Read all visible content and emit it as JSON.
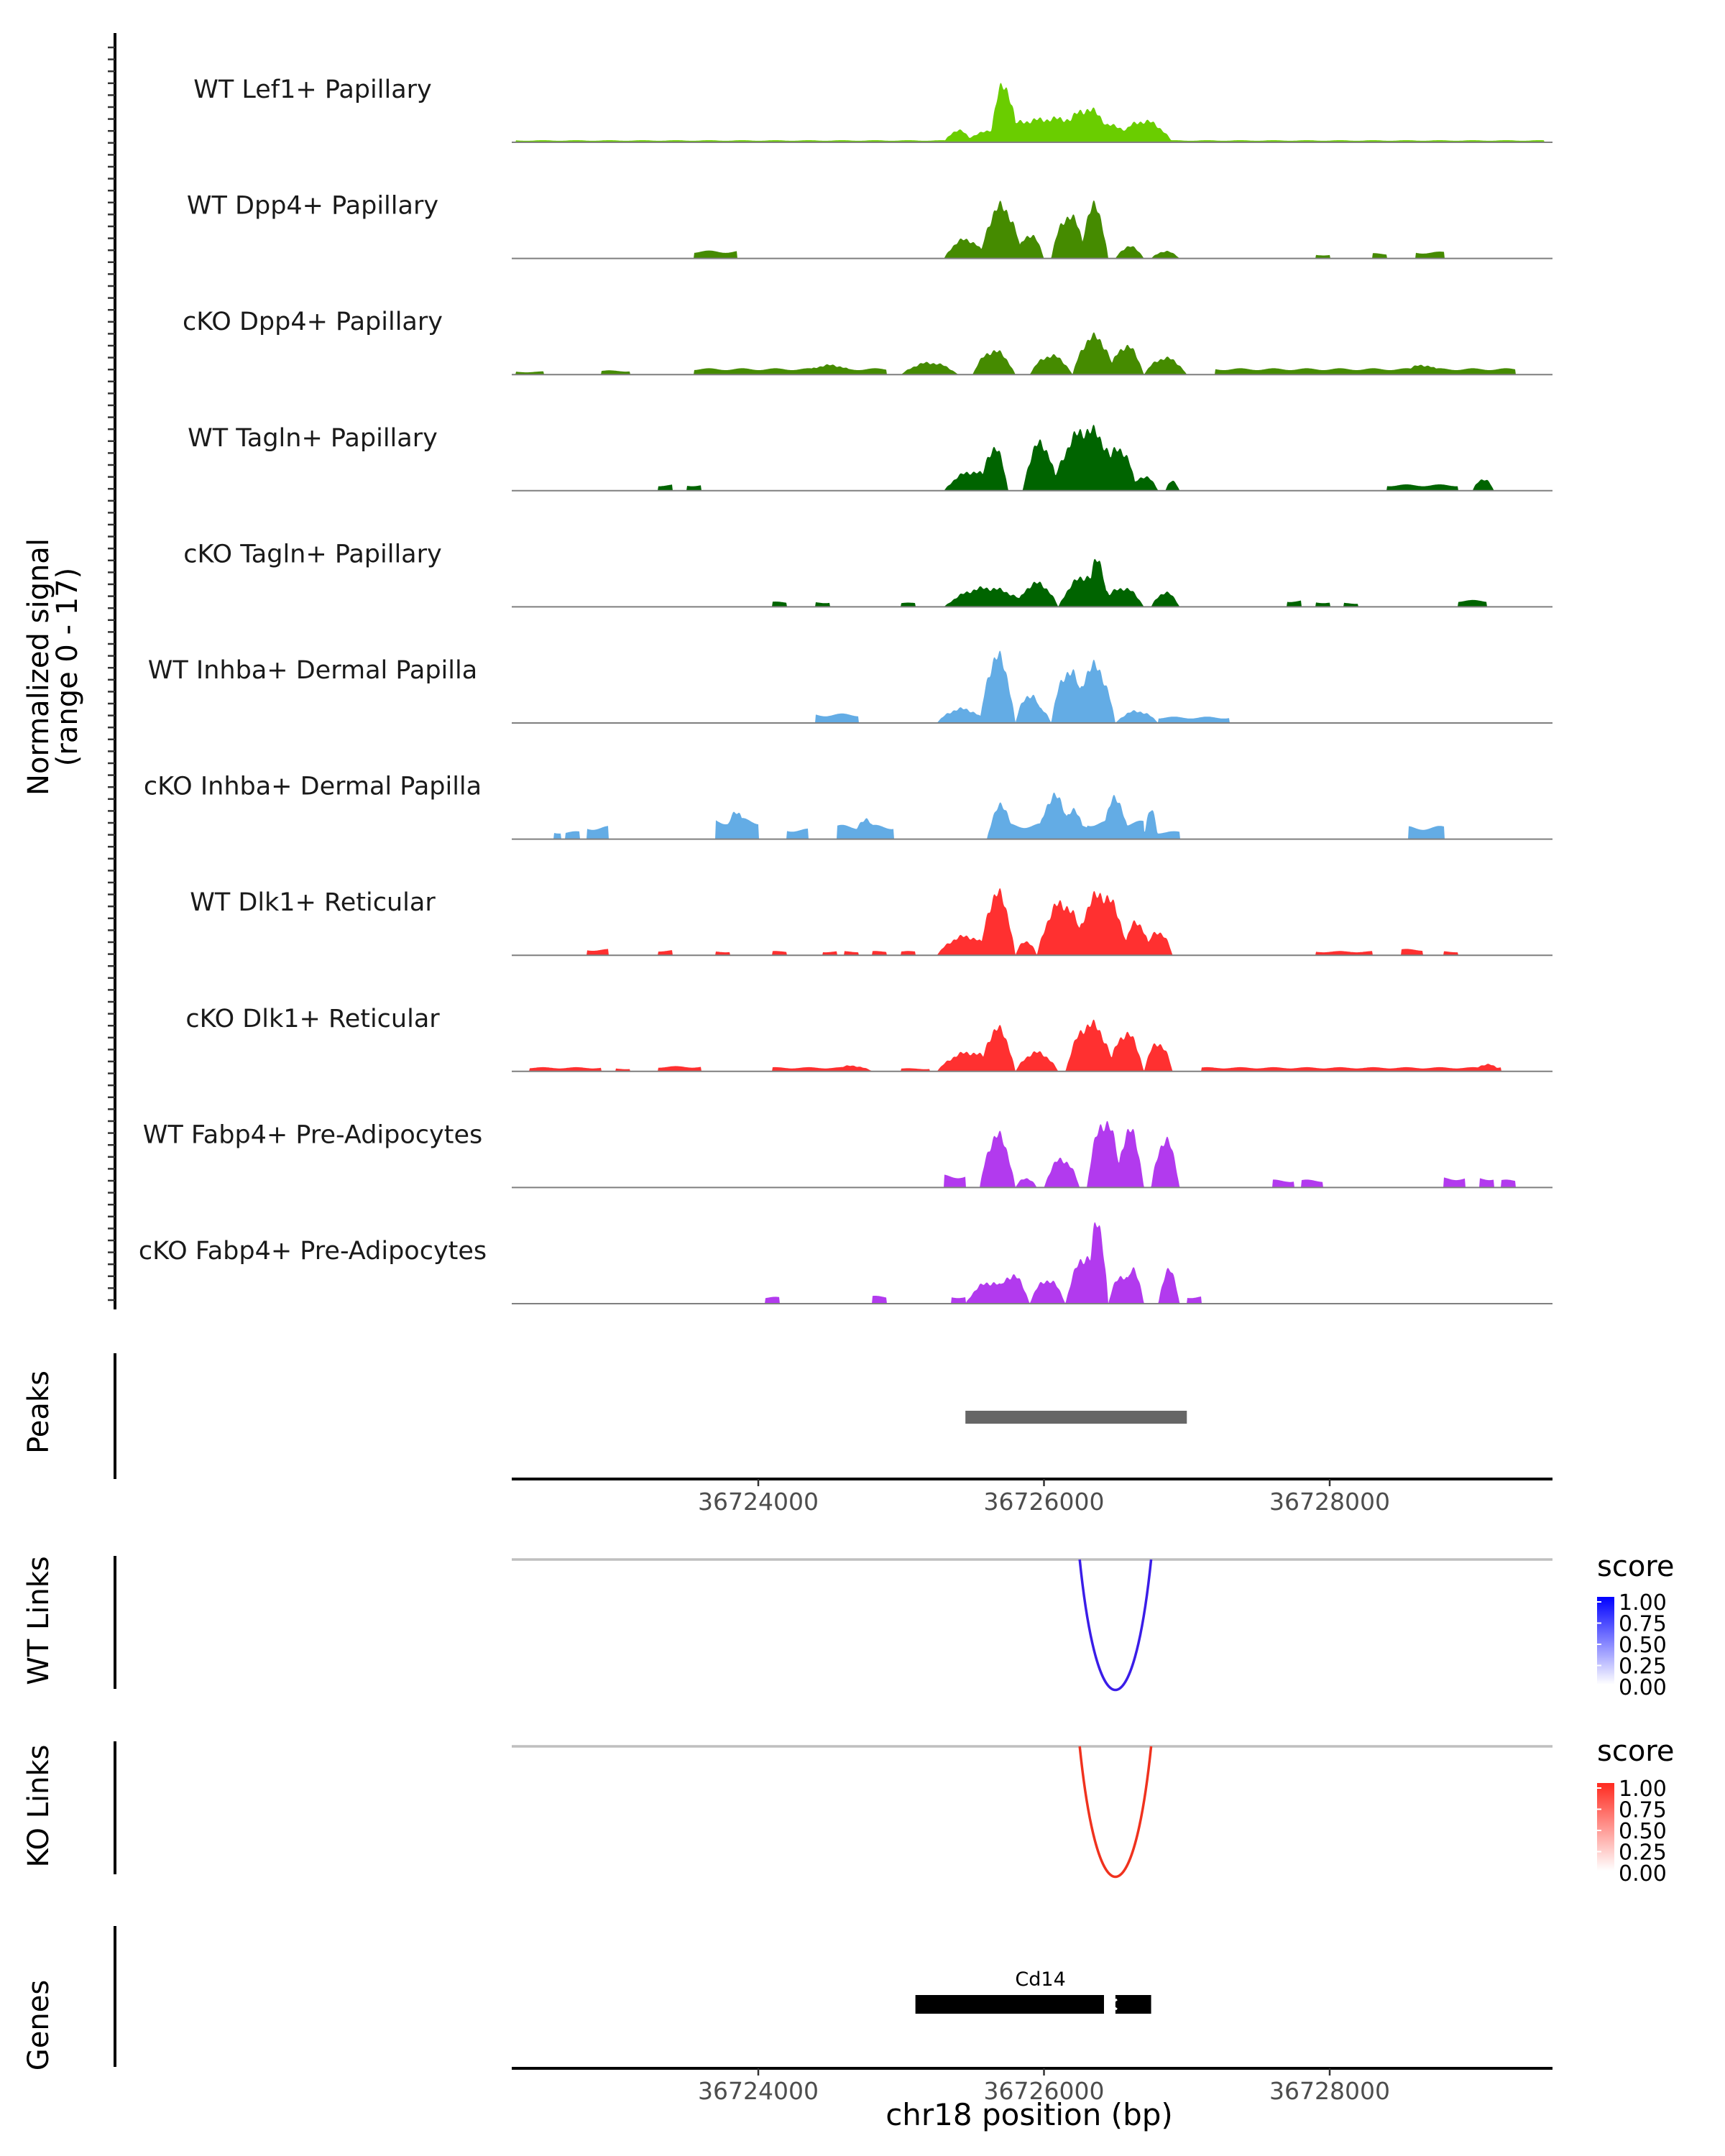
{
  "chart_data": {
    "type": "area",
    "title": "",
    "coverage": {
      "ylabel": "Normalized signal",
      "ylabel_range": "(range 0 - 17)",
      "ylim": [
        0,
        17
      ],
      "xlim": [
        36722200,
        36729500
      ],
      "tracks": [
        {
          "name": "WT Lef1+ Papillary",
          "color": "#6ACD00",
          "segments": [
            [
              36722300,
              36729500,
              0.4
            ]
          ],
          "peaks": [
            [
              36725400,
              36726800,
              5
            ],
            [
              36725620,
              36725820,
              12
            ],
            [
              36726100,
              36726500,
              7
            ],
            [
              36726500,
              36726900,
              4.5
            ],
            [
              36725300,
              36725500,
              2.5
            ]
          ]
        },
        {
          "name": "WT Dpp4+ Papillary",
          "color": "#458B00",
          "segments": [
            [
              36723550,
              36723850,
              1.5
            ],
            [
              36728300,
              36728400,
              1
            ],
            [
              36728600,
              36728800,
              1.3
            ],
            [
              36727900,
              36728000,
              0.8
            ]
          ],
          "peaks": [
            [
              36725300,
              36725600,
              4
            ],
            [
              36725550,
              36725850,
              11
            ],
            [
              36725800,
              36726000,
              5
            ],
            [
              36726050,
              36726300,
              9
            ],
            [
              36726250,
              36726450,
              11
            ],
            [
              36726500,
              36726700,
              2.5
            ],
            [
              36726750,
              36726950,
              1.5
            ]
          ]
        },
        {
          "name": "cKO Dpp4+ Papillary",
          "color": "#458B00",
          "segments": [
            [
              36722300,
              36722500,
              0.6
            ],
            [
              36722900,
              36723100,
              0.8
            ],
            [
              36723550,
              36724900,
              1.2
            ],
            [
              36727200,
              36729300,
              1.2
            ]
          ],
          "peaks": [
            [
              36724300,
              36724700,
              2
            ],
            [
              36725000,
              36725400,
              2.5
            ],
            [
              36725500,
              36725800,
              5
            ],
            [
              36725900,
              36726200,
              4
            ],
            [
              36726200,
              36726500,
              8
            ],
            [
              36726450,
              36726700,
              6
            ],
            [
              36726700,
              36727000,
              3.5
            ],
            [
              36728500,
              36728800,
              2
            ]
          ]
        },
        {
          "name": "WT Tagln+ Papillary",
          "color": "#006400",
          "segments": [
            [
              36723300,
              36723400,
              1.2
            ],
            [
              36723500,
              36723600,
              1.2
            ],
            [
              36728400,
              36728900,
              1.2
            ]
          ],
          "peaks": [
            [
              36725300,
              36725700,
              4
            ],
            [
              36725550,
              36725750,
              9
            ],
            [
              36725850,
              36726100,
              10
            ],
            [
              36726050,
              36726550,
              13
            ],
            [
              36726400,
              36726650,
              9
            ],
            [
              36726600,
              36726800,
              3
            ],
            [
              36726850,
              36726950,
              2
            ],
            [
              36729000,
              36729150,
              2.5
            ]
          ]
        },
        {
          "name": "cKO Tagln+ Papillary",
          "color": "#006400",
          "segments": [
            [
              36724100,
              36724200,
              1
            ],
            [
              36724400,
              36724500,
              1
            ],
            [
              36725000,
              36725100,
              0.8
            ],
            [
              36727700,
              36727800,
              1.3
            ],
            [
              36727900,
              36728000,
              1
            ],
            [
              36728100,
              36728200,
              0.8
            ],
            [
              36728900,
              36729100,
              1.3
            ]
          ],
          "peaks": [
            [
              36725300,
              36725900,
              4
            ],
            [
              36725800,
              36726100,
              5
            ],
            [
              36726100,
              36726500,
              6.5
            ],
            [
              36726300,
              36726450,
              10
            ],
            [
              36726400,
              36726700,
              4
            ],
            [
              36726750,
              36726950,
              3
            ]
          ]
        },
        {
          "name": "WT Inhba+ Dermal Papilla",
          "color": "#63ACE5",
          "segments": [
            [
              36724400,
              36724700,
              1.8
            ],
            [
              36726800,
              36727300,
              1.2
            ]
          ],
          "peaks": [
            [
              36725250,
              36725600,
              3
            ],
            [
              36725550,
              36725800,
              14
            ],
            [
              36725800,
              36726000,
              6
            ],
            [
              36726050,
              36726300,
              11
            ],
            [
              36726200,
              36726500,
              12
            ],
            [
              36726500,
              36726800,
              2.5
            ],
            [
              36725900,
              36726050,
              3
            ]
          ]
        },
        {
          "name": "cKO Inhba+ Dermal Papilla",
          "color": "#63ACE5",
          "segments": [
            [
              36722570,
              36722620,
              1.5
            ],
            [
              36722650,
              36722750,
              1.5
            ],
            [
              36722800,
              36722950,
              2.5
            ],
            [
              36723700,
              36724000,
              4
            ],
            [
              36724200,
              36724350,
              2
            ],
            [
              36724550,
              36724950,
              2.7
            ],
            [
              36725650,
              36726300,
              3
            ],
            [
              36726300,
              36726700,
              3.5
            ],
            [
              36726700,
              36726950,
              1.5
            ],
            [
              36728550,
              36728800,
              2.5
            ]
          ],
          "peaks": [
            [
              36723750,
              36723950,
              5.5
            ],
            [
              36724650,
              36724850,
              4
            ],
            [
              36725600,
              36725800,
              7
            ],
            [
              36725950,
              36726200,
              9
            ],
            [
              36726100,
              36726300,
              6
            ],
            [
              36726400,
              36726600,
              8.5
            ],
            [
              36726700,
              36726800,
              6
            ]
          ]
        },
        {
          "name": "WT Dlk1+ Reticular",
          "color": "#FF3030",
          "segments": [
            [
              36722800,
              36722950,
              1.2
            ],
            [
              36723300,
              36723400,
              1
            ],
            [
              36723700,
              36723800,
              0.8
            ],
            [
              36724100,
              36724200,
              0.8
            ],
            [
              36724450,
              36724550,
              0.8
            ],
            [
              36724600,
              36724700,
              0.8
            ],
            [
              36724800,
              36724900,
              0.8
            ],
            [
              36725000,
              36725100,
              0.8
            ],
            [
              36727900,
              36728300,
              0.8
            ],
            [
              36728500,
              36728650,
              1.2
            ],
            [
              36728800,
              36728900,
              0.8
            ]
          ],
          "peaks": [
            [
              36725250,
              36725650,
              4
            ],
            [
              36725550,
              36725800,
              13
            ],
            [
              36725800,
              36725950,
              3
            ],
            [
              36725950,
              36726300,
              11
            ],
            [
              36726200,
              36726600,
              13
            ],
            [
              36726550,
              36726750,
              7
            ],
            [
              36726700,
              36726900,
              5
            ]
          ]
        },
        {
          "name": "cKO Dlk1+ Reticular",
          "color": "#FF3030",
          "segments": [
            [
              36722400,
              36722900,
              0.8
            ],
            [
              36723000,
              36723100,
              0.6
            ],
            [
              36723300,
              36723600,
              1
            ],
            [
              36724100,
              36724700,
              0.8
            ],
            [
              36725000,
              36725200,
              0.6
            ],
            [
              36727100,
              36729200,
              0.8
            ]
          ],
          "peaks": [
            [
              36724500,
              36724800,
              1.2
            ],
            [
              36725250,
              36725700,
              4
            ],
            [
              36725550,
              36725800,
              9
            ],
            [
              36725800,
              36726100,
              4
            ],
            [
              36726150,
              36726500,
              10
            ],
            [
              36726450,
              36726700,
              8
            ],
            [
              36726700,
              36726900,
              6
            ],
            [
              36729000,
              36729200,
              1.5
            ]
          ]
        },
        {
          "name": "WT Fabp4+ Pre-Adipocytes",
          "color": "#B23AEE",
          "segments": [
            [
              36725300,
              36725450,
              2.5
            ],
            [
              36727600,
              36727750,
              1.5
            ],
            [
              36727800,
              36727950,
              1.5
            ],
            [
              36728800,
              36728950,
              2
            ],
            [
              36729050,
              36729150,
              2
            ],
            [
              36729200,
              36729300,
              1.5
            ]
          ],
          "peaks": [
            [
              36725550,
              36725800,
              11
            ],
            [
              36725800,
              36725950,
              2
            ],
            [
              36726000,
              36726250,
              6
            ],
            [
              36726300,
              36726550,
              14
            ],
            [
              36726500,
              36726700,
              12
            ],
            [
              36726750,
              36726950,
              10
            ]
          ]
        },
        {
          "name": "cKO Fabp4+ Pre-Adipocytes",
          "color": "#B23AEE",
          "segments": [
            [
              36724050,
              36724150,
              1.3
            ],
            [
              36724800,
              36724900,
              1.5
            ],
            [
              36725350,
              36725450,
              1.5
            ],
            [
              36725600,
              36725700,
              1.5
            ],
            [
              36727000,
              36727100,
              1.5
            ]
          ],
          "peaks": [
            [
              36725450,
              36725800,
              4.5
            ],
            [
              36725650,
              36725900,
              6
            ],
            [
              36725900,
              36726150,
              5
            ],
            [
              36726150,
              36726450,
              10
            ],
            [
              36726300,
              36726450,
              17
            ],
            [
              36726450,
              36726650,
              6
            ],
            [
              36726550,
              36726700,
              7
            ],
            [
              36726800,
              36726950,
              7
            ]
          ]
        }
      ]
    },
    "peaks": {
      "label": "Peaks",
      "color": "#666666",
      "ranges": [
        [
          36725450,
          36727000
        ]
      ]
    },
    "xaxis": {
      "ticks": [
        36724000,
        36726000,
        36728000
      ],
      "tick_labels": [
        "36724000",
        "36726000",
        "36728000"
      ]
    },
    "links": [
      {
        "label": "WT Links",
        "start": 36726250,
        "end": 36726750,
        "score": 1.0,
        "color": "#3A1DE8",
        "legend": {
          "title": "score",
          "labels": [
            "1.00",
            "0.75",
            "0.50",
            "0.25",
            "0.00"
          ],
          "gradient": [
            "#FFFFFF",
            "#0000FF"
          ]
        }
      },
      {
        "label": "KO Links",
        "start": 36726250,
        "end": 36726750,
        "score": 1.0,
        "color": "#F0321E",
        "legend": {
          "title": "score",
          "labels": [
            "1.00",
            "0.75",
            "0.50",
            "0.25",
            "0.00"
          ],
          "gradient": [
            "#FFFFFF",
            "#FF2A1F"
          ]
        }
      }
    ],
    "genes": {
      "label": "Genes",
      "color": "#00008B",
      "items": [
        {
          "name": "Cd14",
          "start": 36725100,
          "end": 36726750,
          "strand": "-",
          "exons": [
            [
              36725100,
              36726420
            ],
            [
              36726500,
              36726750
            ]
          ]
        }
      ]
    },
    "xlabel": "chr18 position (bp)"
  }
}
